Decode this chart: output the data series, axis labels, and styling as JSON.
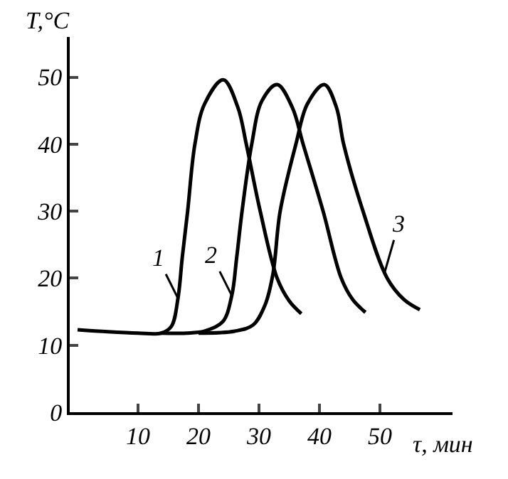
{
  "chart_data": {
    "type": "line",
    "xlabel": "τ, мин",
    "ylabel": "T,°C",
    "xlim": [
      -1.3,
      62
    ],
    "xticks": [
      10,
      20,
      30,
      40,
      50
    ],
    "ylim": [
      0,
      56
    ],
    "yticks": [
      0,
      10,
      20,
      30,
      40,
      50
    ],
    "marker": "none",
    "line_style": "solid",
    "series": [
      {
        "color": "#000000",
        "x": [
          0,
          5,
          10,
          13.8,
          15.5,
          16.6,
          17.3,
          18.2,
          19.4,
          21,
          24.1,
          26.5,
          27.9,
          30.2,
          33,
          35,
          37
        ],
        "values": [
          12.3,
          12.0,
          11.8,
          11.8,
          12.8,
          17,
          23,
          30,
          40,
          46,
          49.6,
          45.5,
          40,
          30,
          20,
          16.6,
          14.7
        ]
      },
      {
        "color": "#000000",
        "x": [
          13.8,
          18,
          21,
          24,
          25.5,
          26.3,
          27.2,
          28.8,
          30.5,
          33,
          35.5,
          37.3,
          40.6,
          43.6,
          45.5,
          47.6
        ],
        "values": [
          11.8,
          11.8,
          12.1,
          13.5,
          17.4,
          23,
          30,
          40,
          46.5,
          48.9,
          45.5,
          40,
          30,
          20,
          16.8,
          14.9
        ]
      },
      {
        "color": "#000000",
        "x": [
          20,
          26,
          29,
          31,
          32.3,
          33.5,
          36.1,
          38,
          40.8,
          42.8,
          44,
          47.2,
          51.2,
          54,
          56.6
        ],
        "values": [
          11.8,
          12.1,
          13,
          16,
          20.6,
          30,
          40,
          46,
          48.9,
          45.5,
          40,
          30,
          20,
          16.8,
          15.3
        ]
      }
    ],
    "annotations": [
      {
        "text": "1",
        "x": 16.6,
        "y": 17
      },
      {
        "text": "2",
        "x": 25.5,
        "y": 17.4
      },
      {
        "text": "3",
        "x": 50.7,
        "y": 20.6
      }
    ]
  }
}
